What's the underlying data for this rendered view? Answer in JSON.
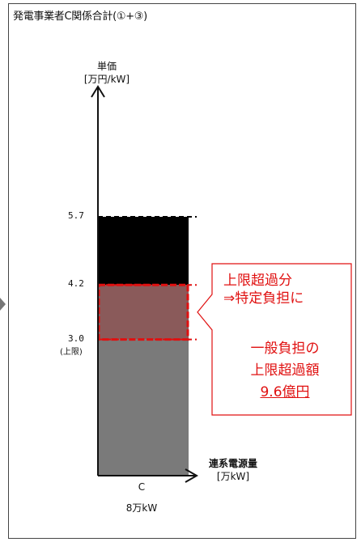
{
  "chart_title": "発電事業者C関係合計(①+③)",
  "colors": {
    "segment_low": "#7a7a7a",
    "segment_mid": "#8a5a5a",
    "segment_top": "#000000",
    "accent_red": "#e01010"
  },
  "chart_data": {
    "type": "bar",
    "categories": [
      "C"
    ],
    "category_sublabel": "8万kW",
    "y_axis_label_line1": "単価",
    "y_axis_label_line2": "[万円/kW]",
    "x_axis_label_line1": "連系電源量",
    "x_axis_label_line2": "[万kW]",
    "stack_levels": [
      3.0,
      4.2,
      5.7
    ],
    "tick_labels": [
      "5.7",
      "4.2",
      "3.0"
    ],
    "tick_sub": "(上限)",
    "callout_top_line1": "上限超過分",
    "callout_top_line2": "⇒特定負担に",
    "callout_bottom_line1": "一般負担の",
    "callout_bottom_line2": "上限超過額",
    "callout_bottom_line3": "9.6億円"
  }
}
